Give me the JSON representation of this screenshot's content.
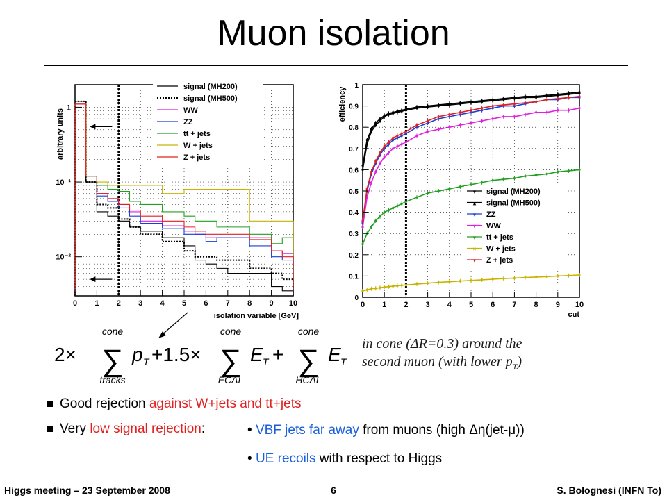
{
  "slide": {
    "title": "Muon isolation",
    "note_line1": "in cone (ΔR=0.3) around the",
    "note_line2": "second muon (with lower p",
    "note_sub": "T",
    "note_end": ")",
    "bullet1_a": "Good rejection ",
    "bullet1_b": "against W+jets and tt+jets",
    "bullet2_a": "Very ",
    "bullet2_b": "low signal rejection",
    "bullet2_c": ":",
    "sub1_a": "• ",
    "sub1_b": "VBF jets far away",
    "sub1_c": " from muons (high Δη(jet-μ))",
    "sub2_a": "• ",
    "sub2_b": "UE recoils",
    "sub2_c": " with respect to Higgs",
    "footer_left": "Higgs meeting – 23 September 2008",
    "footer_page": "6",
    "footer_right": "S. Bolognesi (INFN To)"
  },
  "formula": {
    "coef1": "2×",
    "sum_top": "cone",
    "sum1_bottom": "tracks",
    "term1": "p",
    "term1_sub": "T",
    "plus1": "+1.5×",
    "sum2_bottom": "ECAL",
    "term2": "E",
    "term2_sub": "T",
    "plus2": "+",
    "sum3_bottom": "HCAL",
    "term3": "E",
    "term3_sub": "T"
  },
  "colors": {
    "signal_mh200": "#000000",
    "signal_mh500": "#000000",
    "WW": "#e020e0",
    "ZZ": "#1a3fd8",
    "ttjets": "#20a020",
    "Wjets": "#c8b400",
    "Zjets": "#e02020"
  },
  "chart_data": [
    {
      "type": "line",
      "subtype": "histogram",
      "xlabel": "isolation variable [GeV]",
      "ylabel": "arbitrary units",
      "yscale": "log",
      "xlim": [
        0,
        10
      ],
      "ylim": [
        0.003,
        2
      ],
      "xticks": [
        "0",
        "1",
        "2",
        "3",
        "4",
        "5",
        "6",
        "7",
        "8",
        "9",
        "10"
      ],
      "yticks": [
        {
          "label": "1",
          "value": 1
        },
        {
          "label": "10⁻¹",
          "value": 0.1
        },
        {
          "label": "10⁻²",
          "value": 0.01
        }
      ],
      "cut_x": 2,
      "bin_edges": [
        0,
        0.5,
        1,
        1.5,
        2,
        2.5,
        3,
        4,
        5,
        5.5,
        6,
        6.5,
        7,
        8,
        9,
        9.5,
        10
      ],
      "series": [
        {
          "name": "signal (MH200)",
          "color": "#000000",
          "dash": "solid",
          "values": [
            1.2,
            0.1,
            0.04,
            0.035,
            0.03,
            0.025,
            0.022,
            0.018,
            0.014,
            0.009,
            0.008,
            0.007,
            0.006,
            0.006,
            0.004,
            0.0035
          ]
        },
        {
          "name": "signal (MH500)",
          "color": "#000000",
          "dash": "dotted",
          "values": [
            1.2,
            0.1,
            0.05,
            0.045,
            0.032,
            0.025,
            0.02,
            0.016,
            0.012,
            0.01,
            0.01,
            0.009,
            0.009,
            0.007,
            0.006,
            0.005
          ]
        },
        {
          "name": "WW",
          "color": "#e020e0",
          "values": [
            1.1,
            0.12,
            0.07,
            0.06,
            0.05,
            0.04,
            0.03,
            0.026,
            0.022,
            0.02,
            0.018,
            0.018,
            0.018,
            0.018,
            0.012,
            0.011
          ]
        },
        {
          "name": "ZZ",
          "color": "#1a3fd8",
          "values": [
            1.1,
            0.12,
            0.065,
            0.055,
            0.045,
            0.035,
            0.028,
            0.024,
            0.02,
            0.02,
            0.016,
            0.018,
            0.018,
            0.014,
            0.01,
            0.009
          ]
        },
        {
          "name": "tt + jets",
          "color": "#20a020",
          "values": [
            1.1,
            0.12,
            0.09,
            0.08,
            0.075,
            0.055,
            0.05,
            0.04,
            0.035,
            0.03,
            0.03,
            0.025,
            0.025,
            0.02,
            0.015,
            0.018
          ]
        },
        {
          "name": "W + jets",
          "color": "#c8b400",
          "values": [
            1.1,
            0.12,
            0.1,
            0.09,
            0.09,
            0.09,
            0.09,
            0.07,
            0.08,
            0.08,
            0.08,
            0.08,
            0.08,
            0.03,
            0.03,
            0.03
          ]
        },
        {
          "name": "Z + jets",
          "color": "#e02020",
          "values": [
            1.1,
            0.12,
            0.07,
            0.06,
            0.05,
            0.042,
            0.035,
            0.03,
            0.025,
            0.022,
            0.02,
            0.02,
            0.02,
            0.017,
            0.012,
            0.01
          ]
        }
      ],
      "arrow_y_values": [
        0.55,
        0.005
      ]
    },
    {
      "type": "line",
      "xlabel": "cut",
      "ylabel": "efficiency",
      "xlim": [
        0,
        10
      ],
      "ylim": [
        0,
        1
      ],
      "xticks": [
        "0",
        "1",
        "2",
        "3",
        "4",
        "5",
        "6",
        "7",
        "8",
        "9",
        "10"
      ],
      "yticks": [
        "0",
        "0.1",
        "0.2",
        "0.3",
        "0.4",
        "0.5",
        "0.6",
        "0.7",
        "0.8",
        "0.9",
        "1"
      ],
      "cut_x": 2,
      "x": [
        0,
        0.2,
        0.4,
        0.6,
        0.8,
        1,
        1.2,
        1.4,
        1.6,
        1.8,
        2,
        2.5,
        3,
        3.5,
        4,
        4.5,
        5,
        5.5,
        6,
        6.5,
        7,
        7.5,
        8,
        8.5,
        9,
        9.5,
        10
      ],
      "series": [
        {
          "name": "signal (MH200)",
          "color": "#000000",
          "marker": "▾",
          "values": [
            0.6,
            0.72,
            0.78,
            0.81,
            0.83,
            0.85,
            0.86,
            0.865,
            0.87,
            0.875,
            0.88,
            0.89,
            0.895,
            0.9,
            0.905,
            0.91,
            0.915,
            0.92,
            0.925,
            0.93,
            0.935,
            0.94,
            0.94,
            0.945,
            0.95,
            0.955,
            0.96
          ]
        },
        {
          "name": "signal (MH500)",
          "color": "#000000",
          "marker": "▴",
          "values": [
            0.62,
            0.74,
            0.79,
            0.82,
            0.84,
            0.855,
            0.865,
            0.87,
            0.875,
            0.88,
            0.885,
            0.895,
            0.9,
            0.905,
            0.91,
            0.915,
            0.92,
            0.925,
            0.93,
            0.935,
            0.94,
            0.945,
            0.945,
            0.95,
            0.955,
            0.96,
            0.965
          ]
        },
        {
          "name": "ZZ",
          "color": "#1a3fd8",
          "marker": "▾",
          "values": [
            0.35,
            0.5,
            0.58,
            0.63,
            0.67,
            0.7,
            0.72,
            0.74,
            0.75,
            0.76,
            0.77,
            0.8,
            0.82,
            0.84,
            0.85,
            0.86,
            0.87,
            0.88,
            0.89,
            0.9,
            0.9,
            0.91,
            0.92,
            0.93,
            0.93,
            0.94,
            0.94
          ]
        },
        {
          "name": "WW",
          "color": "#e020e0",
          "marker": "▾",
          "values": [
            0.33,
            0.47,
            0.54,
            0.59,
            0.63,
            0.66,
            0.68,
            0.7,
            0.71,
            0.72,
            0.73,
            0.76,
            0.78,
            0.79,
            0.8,
            0.81,
            0.82,
            0.83,
            0.84,
            0.85,
            0.85,
            0.86,
            0.87,
            0.87,
            0.88,
            0.88,
            0.89
          ]
        },
        {
          "name": "tt + jets",
          "color": "#20a020",
          "marker": "▾",
          "values": [
            0.25,
            0.3,
            0.33,
            0.36,
            0.38,
            0.4,
            0.41,
            0.42,
            0.43,
            0.44,
            0.45,
            0.47,
            0.49,
            0.5,
            0.51,
            0.52,
            0.53,
            0.54,
            0.55,
            0.555,
            0.56,
            0.57,
            0.575,
            0.58,
            0.59,
            0.595,
            0.6
          ]
        },
        {
          "name": "W + jets",
          "color": "#c8b400",
          "marker": "×",
          "values": [
            0.03,
            0.035,
            0.04,
            0.042,
            0.045,
            0.048,
            0.05,
            0.052,
            0.054,
            0.056,
            0.058,
            0.062,
            0.066,
            0.07,
            0.073,
            0.076,
            0.079,
            0.082,
            0.085,
            0.088,
            0.09,
            0.093,
            0.095,
            0.097,
            0.1,
            0.102,
            0.105
          ]
        },
        {
          "name": "Z + jets",
          "color": "#e02020",
          "marker": "▾",
          "values": [
            0.36,
            0.51,
            0.59,
            0.64,
            0.68,
            0.71,
            0.73,
            0.75,
            0.76,
            0.77,
            0.78,
            0.81,
            0.83,
            0.85,
            0.86,
            0.87,
            0.88,
            0.89,
            0.9,
            0.905,
            0.91,
            0.915,
            0.92,
            0.93,
            0.935,
            0.94,
            0.945
          ]
        }
      ]
    }
  ]
}
